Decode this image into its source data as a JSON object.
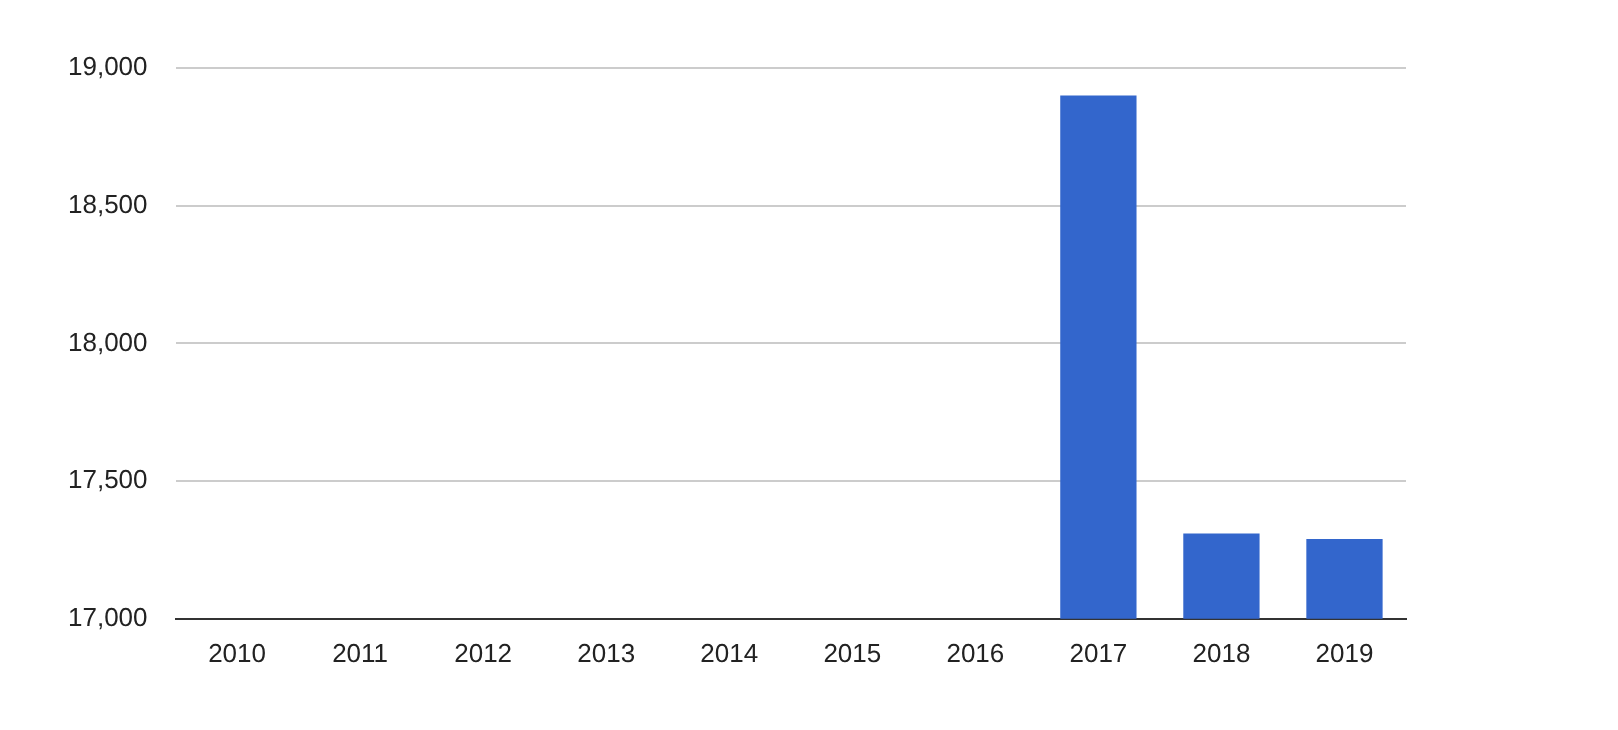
{
  "chart_data": {
    "type": "bar",
    "categories": [
      "2010",
      "2011",
      "2012",
      "2013",
      "2014",
      "2015",
      "2016",
      "2017",
      "2018",
      "2019"
    ],
    "series": [
      {
        "color": "#3366cc",
        "values": [
          null,
          null,
          null,
          null,
          null,
          null,
          null,
          18900,
          17310,
          17290
        ]
      }
    ],
    "ylim": [
      17000,
      19000
    ],
    "yticks": [
      {
        "value": 17000,
        "label": "17,000"
      },
      {
        "value": 17500,
        "label": "17,500"
      },
      {
        "value": 18000,
        "label": "18,000"
      },
      {
        "value": 18500,
        "label": "18,500"
      },
      {
        "value": 19000,
        "label": "19,000"
      }
    ],
    "grid": "y"
  }
}
